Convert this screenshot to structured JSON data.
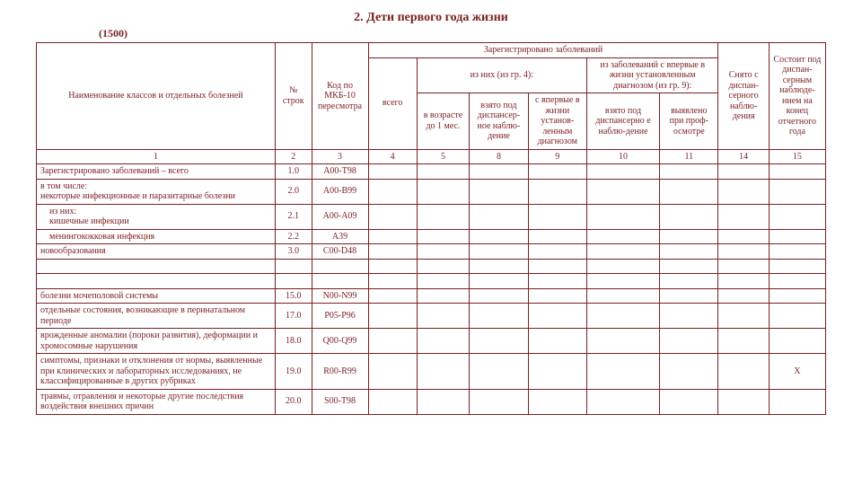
{
  "title": "2. Дети первого года жизни",
  "formnum": "(1500)",
  "headers": {
    "col1": "Наименование классов и отдельных болезней",
    "col2": "№ строк",
    "col3": "Код по МКБ-10 пересмотра",
    "reg": "Зарегистрировано заболеваний",
    "vsego": "всего",
    "izgr4": "из них (из гр. 4):",
    "v1mes": "в возрасте до 1 мес.",
    "vzato8": "взято под диспансер-ное наблю-дение",
    "vpervye9": "с впервые в жизни установ-ленным диагнозом",
    "izgr9": "из заболеваний с впервые в жизни установленным диагнозом (из гр. 9):",
    "vzato10": "взято под диспансерно е наблю-дение",
    "vyavl11": "выявлено при проф-осмотре",
    "snyato": "Снято с диспан-серного наблю-дения",
    "sostoit": "Состоит под диспан-серным наблюде-нием на конец отчетного года"
  },
  "numrow": [
    "1",
    "2",
    "3",
    "4",
    "5",
    "8",
    "9",
    "10",
    "11",
    "14",
    "15"
  ],
  "rows": [
    {
      "name": "Зарегистрировано заболеваний – всего",
      "num": "1.0",
      "code": "A00-T98",
      "cls": ""
    },
    {
      "name": "в том числе:\nнекоторые инфекционные и паразитарные болезни",
      "num": "2.0",
      "code": "A00-B99",
      "cls": ""
    },
    {
      "name": "из них:\n   кишечные инфекции",
      "num": "2.1",
      "code": "A00-A09",
      "cls": "indent1"
    },
    {
      "name": "менингококковая инфекция",
      "num": "2.2",
      "code": "A39",
      "cls": "indent1"
    },
    {
      "name": "новообразования",
      "num": "3.0",
      "code": "C00-D48",
      "cls": ""
    }
  ],
  "rows2": [
    {
      "name": "болезни мочеполовой системы",
      "num": "15.0",
      "code": "N00-N99",
      "cls": "",
      "last": ""
    },
    {
      "name": "отдельные состояния, возникающие в перинатальном периоде",
      "num": "17.0",
      "code": "P05-P96",
      "cls": "",
      "last": ""
    },
    {
      "name": "врожденные аномалии (пороки развития), деформации и хромосомные нарушения",
      "num": "18.0",
      "code": "Q00-Q99",
      "cls": "",
      "last": ""
    },
    {
      "name": "симптомы, признаки и отклонения от нормы, выявленные при клинических и лабораторных исследованиях, не классифицированные в других рубриках",
      "num": "19.0",
      "code": "R00-R99",
      "cls": "",
      "last": "Х"
    },
    {
      "name": "травмы, отравления и некоторые другие последствия воздействия внешних причин",
      "num": "20.0",
      "code": "S00-T98",
      "cls": "",
      "last": ""
    }
  ]
}
